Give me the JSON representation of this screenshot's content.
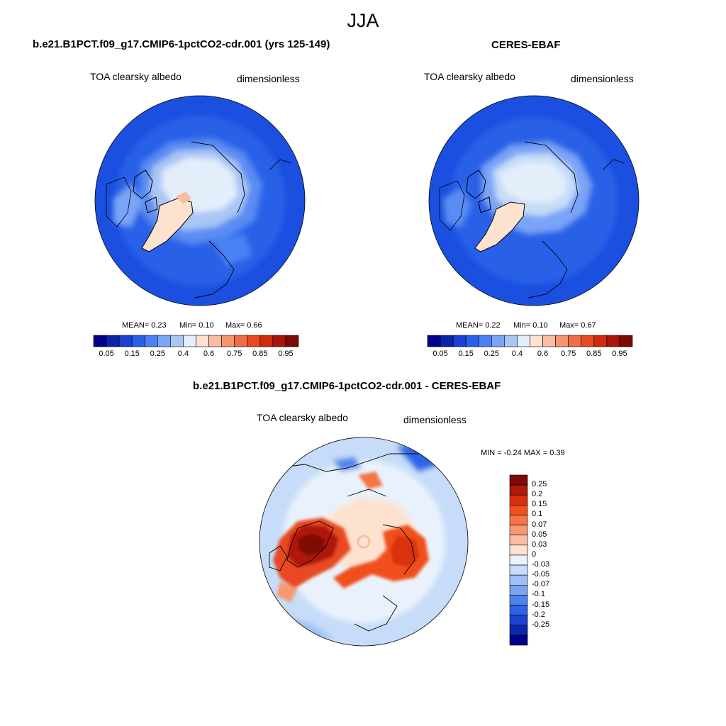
{
  "figure": {
    "season": "JJA"
  },
  "panels": [
    {
      "id": "model",
      "title": "b.e21.B1PCT.f09_g17.CMIP6-1pctCO2-cdr.001 (yrs 125-149)",
      "left_label": "TOA clearsky albedo",
      "right_label": "dimensionless",
      "stats": {
        "mean": "MEAN=   0.23",
        "min": "Min=   0.10",
        "max": "Max=   0.66"
      }
    },
    {
      "id": "obs",
      "title": "CERES-EBAF",
      "left_label": "TOA clearsky albedo",
      "right_label": "dimensionless",
      "stats": {
        "mean": "MEAN=   0.22",
        "min": "Min=   0.10",
        "max": "Max=   0.67"
      }
    },
    {
      "id": "diff",
      "title": "b.e21.B1PCT.f09_g17.CMIP6-1pctCO2-cdr.001 - CERES-EBAF",
      "left_label": "TOA clearsky albedo",
      "right_label": "dimensionless",
      "stats": {
        "minmax": "MIN =  -0.24 MAX =   0.39"
      }
    }
  ],
  "colorbar_abs": {
    "colors": [
      "#00008b",
      "#0a24a8",
      "#1a3fd4",
      "#2860ea",
      "#4a82f5",
      "#7aa4f7",
      "#a9c6f5",
      "#e4eefb",
      "#fde2cf",
      "#f9bda2",
      "#f4956f",
      "#ef6e45",
      "#e84a22",
      "#d12a0c",
      "#a8150a",
      "#7d0a05"
    ],
    "labels": [
      "0.05",
      "0.15",
      "0.25",
      "0.4",
      "0.6",
      "0.75",
      "0.85",
      "0.95"
    ]
  },
  "colorbar_diff": {
    "colors": [
      "#7d0a05",
      "#b0190a",
      "#d93010",
      "#f0501c",
      "#f57448",
      "#f79a72",
      "#f9bda2",
      "#fde2cf",
      "#e9f2fc",
      "#c6dcf8",
      "#9ec1f4",
      "#7aa4f0",
      "#4f82eb",
      "#2f63e6",
      "#1a44d1",
      "#0b28ac",
      "#00008b"
    ],
    "labels": [
      "0.25",
      "0.2",
      "0.15",
      "0.1",
      "0.07",
      "0.05",
      "0.03",
      "0",
      "-0.03",
      "-0.05",
      "-0.07",
      "-0.1",
      "-0.15",
      "-0.2",
      "-0.25"
    ]
  }
}
